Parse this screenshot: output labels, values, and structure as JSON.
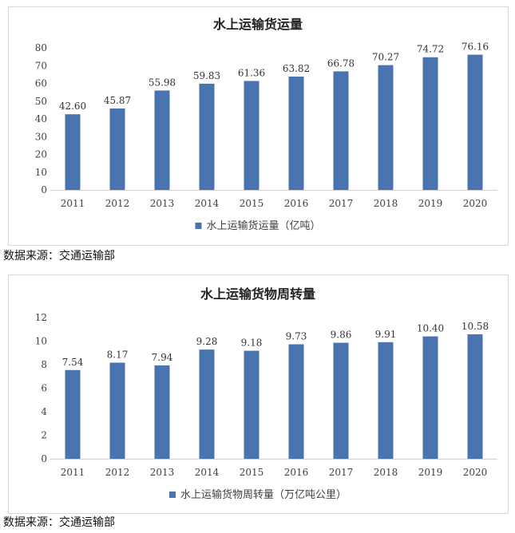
{
  "charts": {
    "chart_data": [
      {
        "type": "bar",
        "title": "水上运输货运量",
        "categories": [
          "2011",
          "2012",
          "2013",
          "2014",
          "2015",
          "2016",
          "2017",
          "2018",
          "2019",
          "2020"
        ],
        "series": [
          {
            "name": "水上运输货运量（亿吨）",
            "values": [
              42.6,
              45.87,
              55.98,
              59.83,
              61.36,
              63.82,
              66.78,
              70.27,
              74.72,
              76.16
            ],
            "labels": [
              "42.60",
              "45.87",
              "55.98",
              "59.83",
              "61.36",
              "63.82",
              "66.78",
              "70.27",
              "74.72",
              "76.16"
            ]
          }
        ],
        "ylim": [
          0,
          80
        ],
        "yticks": [
          "0",
          "10",
          "20",
          "30",
          "40",
          "50",
          "60",
          "70",
          "80"
        ],
        "legend": "bottom",
        "grid": false,
        "bar_color": "#4a74b0"
      },
      {
        "type": "bar",
        "title": "水上运输货物周转量",
        "categories": [
          "2011",
          "2012",
          "2013",
          "2014",
          "2015",
          "2016",
          "2017",
          "2018",
          "2019",
          "2020"
        ],
        "series": [
          {
            "name": "水上运输货物周转量（万亿吨公里）",
            "values": [
              7.54,
              8.17,
              7.94,
              9.28,
              9.18,
              9.73,
              9.86,
              9.91,
              10.4,
              10.58
            ],
            "labels": [
              "7.54",
              "8.17",
              "7.94",
              "9.28",
              "9.18",
              "9.73",
              "9.86",
              "9.91",
              "10.40",
              "10.58"
            ]
          }
        ],
        "ylim": [
          0,
          12
        ],
        "yticks": [
          "0",
          "2",
          "4",
          "6",
          "8",
          "10",
          "12"
        ],
        "legend": "bottom",
        "grid": false,
        "bar_color": "#4a74b0"
      }
    ]
  },
  "sources": {
    "first": "数据来源：交通运输部",
    "second": "数据来源：交通运输部"
  }
}
